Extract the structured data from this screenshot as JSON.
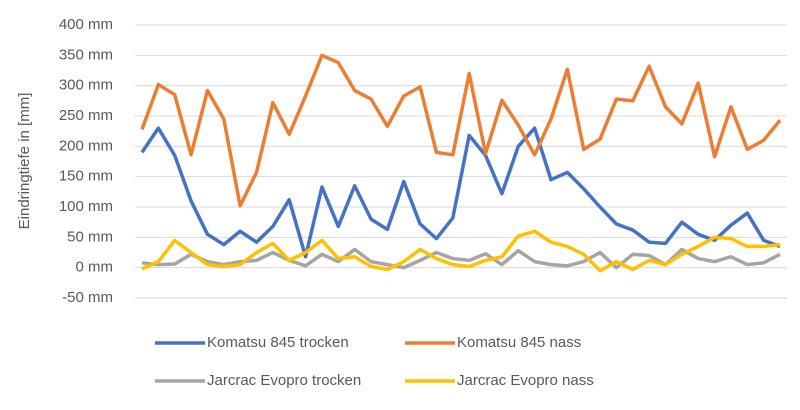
{
  "chart_data": {
    "type": "line",
    "y_label": "Eindringtiefe in [mm]",
    "ylim": [
      -50,
      400
    ],
    "yticks": [
      {
        "value": -50,
        "label": "-50 mm"
      },
      {
        "value": 0,
        "label": "0 mm"
      },
      {
        "value": 50,
        "label": "50 mm"
      },
      {
        "value": 100,
        "label": "100 mm"
      },
      {
        "value": 150,
        "label": "150 mm"
      },
      {
        "value": 200,
        "label": "200 mm"
      },
      {
        "value": 250,
        "label": "250 mm"
      },
      {
        "value": 300,
        "label": "300 mm"
      },
      {
        "value": 350,
        "label": "350 mm"
      },
      {
        "value": 400,
        "label": "400 mm"
      }
    ],
    "grid": true,
    "legend": "bottom",
    "series": [
      {
        "name": "Komatsu 845 trocken",
        "color": "#4472c4",
        "values": [
          190,
          230,
          185,
          110,
          55,
          38,
          60,
          42,
          68,
          112,
          18,
          133,
          68,
          135,
          80,
          63,
          142,
          72,
          48,
          82,
          218,
          185,
          122,
          200,
          230,
          145,
          157,
          130,
          100,
          72,
          62,
          42,
          40,
          75,
          55,
          45,
          70,
          90,
          45,
          35
        ]
      },
      {
        "name": "Komatsu 845 nass",
        "color": "#ed7d31",
        "values": [
          228,
          302,
          285,
          186,
          292,
          245,
          102,
          157,
          272,
          220,
          283,
          350,
          338,
          292,
          278,
          233,
          283,
          298,
          190,
          186,
          320,
          188,
          276,
          235,
          186,
          245,
          327,
          195,
          212,
          278,
          275,
          332,
          265,
          237,
          304,
          183,
          265,
          195,
          210,
          243
        ]
      },
      {
        "name": "Jarcrac Evopro trocken",
        "color": "#a5a5a5",
        "values": [
          8,
          5,
          6,
          22,
          10,
          5,
          10,
          12,
          25,
          12,
          3,
          22,
          10,
          30,
          10,
          5,
          0,
          12,
          25,
          15,
          12,
          23,
          5,
          28,
          10,
          5,
          3,
          10,
          25,
          0,
          22,
          20,
          5,
          30,
          15,
          10,
          18,
          5,
          8,
          22
        ]
      },
      {
        "name": "Jarcrac Evopro nass",
        "color": "#ffc000",
        "values": [
          -2,
          10,
          45,
          25,
          5,
          2,
          5,
          25,
          40,
          12,
          25,
          45,
          15,
          18,
          2,
          -3,
          10,
          30,
          15,
          5,
          2,
          12,
          18,
          52,
          60,
          42,
          35,
          22,
          -5,
          10,
          -3,
          12,
          5,
          22,
          35,
          50,
          48,
          35,
          35,
          38
        ]
      }
    ]
  }
}
